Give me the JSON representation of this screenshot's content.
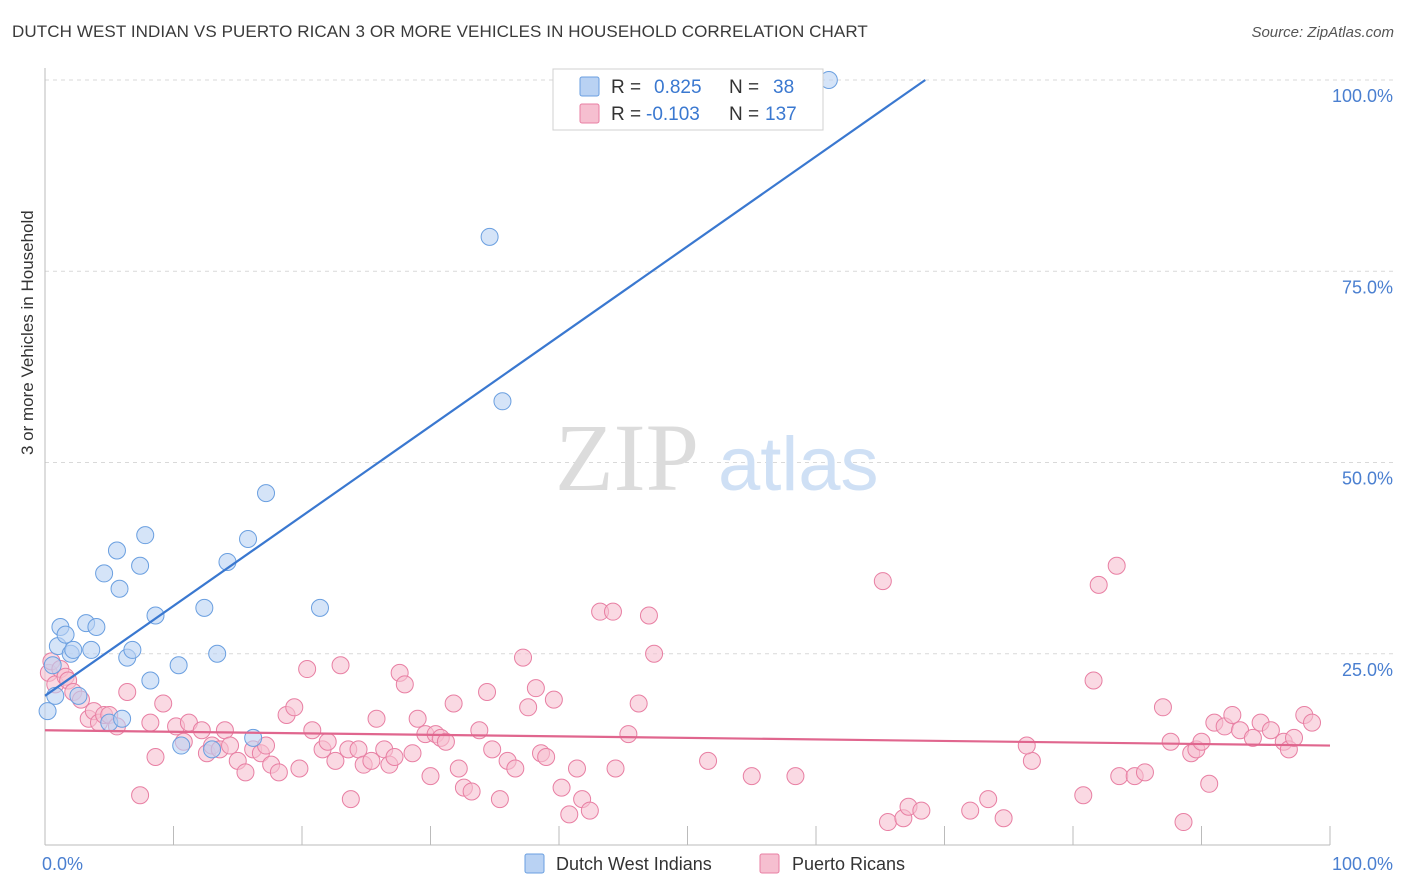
{
  "title": "DUTCH WEST INDIAN VS PUERTO RICAN 3 OR MORE VEHICLES IN HOUSEHOLD CORRELATION CHART",
  "source": "Source: ZipAtlas.com",
  "watermark": {
    "zip": "ZIP",
    "atlas": "atlas"
  },
  "colors": {
    "blue": "#6a9fe0",
    "blue_fill": "#b9d2f3",
    "blue_line": "#3a78d0",
    "pink": "#e87fa3",
    "pink_fill": "#f6bfd0",
    "pink_line": "#e0668e",
    "axis_text": "#4a7fd0",
    "grid": "#d9d9d9"
  },
  "chart_data": {
    "type": "scatter",
    "ylabel": "3 or more Vehicles in Household",
    "xlim": [
      0,
      100
    ],
    "ylim": [
      0,
      100
    ],
    "x_ticks": [
      "0.0%",
      "100.0%"
    ],
    "y_ticks": [
      {
        "value": 25,
        "label": "25.0%"
      },
      {
        "value": 50,
        "label": "50.0%"
      },
      {
        "value": 75,
        "label": "75.0%"
      },
      {
        "value": 100,
        "label": "100.0%"
      }
    ],
    "legend_stats": [
      {
        "r_label": "R =",
        "r_value": "0.825",
        "n_label": "N =",
        "n_value": "38"
      },
      {
        "r_label": "R =",
        "r_value": "-0.103",
        "n_label": "N =",
        "n_value": "137"
      }
    ],
    "series": [
      {
        "name": "Dutch West Indians",
        "color": "#6a9fe0",
        "trend": {
          "x": [
            0,
            68.5
          ],
          "y": [
            19.5,
            100
          ]
        },
        "points": [
          [
            0.2,
            17.5
          ],
          [
            0.6,
            23.5
          ],
          [
            0.8,
            19.5
          ],
          [
            1.0,
            26
          ],
          [
            1.2,
            28.5
          ],
          [
            1.6,
            27.5
          ],
          [
            2.0,
            25
          ],
          [
            2.2,
            25.5
          ],
          [
            2.6,
            19.5
          ],
          [
            3.2,
            29
          ],
          [
            3.6,
            25.5
          ],
          [
            4.0,
            28.5
          ],
          [
            4.6,
            35.5
          ],
          [
            5.0,
            16
          ],
          [
            5.6,
            38.5
          ],
          [
            5.8,
            33.5
          ],
          [
            6.0,
            16.5
          ],
          [
            6.4,
            24.5
          ],
          [
            6.8,
            25.5
          ],
          [
            7.4,
            36.5
          ],
          [
            7.8,
            40.5
          ],
          [
            8.2,
            21.5
          ],
          [
            8.6,
            30
          ],
          [
            10.4,
            23.5
          ],
          [
            10.6,
            13
          ],
          [
            12.4,
            31
          ],
          [
            13.0,
            12.5
          ],
          [
            13.4,
            25
          ],
          [
            14.2,
            37
          ],
          [
            15.8,
            40
          ],
          [
            16.2,
            14
          ],
          [
            17.2,
            46
          ],
          [
            21.4,
            31
          ],
          [
            34.6,
            79.5
          ],
          [
            35.6,
            58
          ],
          [
            61.0,
            100
          ]
        ]
      },
      {
        "name": "Puerto Ricans",
        "color": "#e87fa3",
        "trend": {
          "x": [
            0,
            100
          ],
          "y": [
            15,
            13
          ]
        },
        "points": [
          [
            0.3,
            22.5
          ],
          [
            0.5,
            24
          ],
          [
            0.8,
            21
          ],
          [
            1.2,
            23
          ],
          [
            1.6,
            22
          ],
          [
            1.8,
            21.5
          ],
          [
            2.2,
            20
          ],
          [
            2.8,
            19
          ],
          [
            3.4,
            16.5
          ],
          [
            3.8,
            17.5
          ],
          [
            4.2,
            16
          ],
          [
            4.6,
            17
          ],
          [
            5.0,
            17
          ],
          [
            5.6,
            15.5
          ],
          [
            6.4,
            20
          ],
          [
            7.4,
            6.5
          ],
          [
            8.2,
            16
          ],
          [
            8.6,
            11.5
          ],
          [
            9.2,
            18.5
          ],
          [
            10.2,
            15.5
          ],
          [
            10.8,
            13.5
          ],
          [
            11.2,
            16
          ],
          [
            12.2,
            15
          ],
          [
            12.6,
            12
          ],
          [
            13.0,
            13
          ],
          [
            13.6,
            12.5
          ],
          [
            14.0,
            15
          ],
          [
            14.4,
            13
          ],
          [
            15.0,
            11
          ],
          [
            15.6,
            9.5
          ],
          [
            16.2,
            12.5
          ],
          [
            16.8,
            12
          ],
          [
            17.2,
            13
          ],
          [
            17.6,
            10.5
          ],
          [
            18.2,
            9.5
          ],
          [
            18.8,
            17
          ],
          [
            19.4,
            18
          ],
          [
            19.8,
            10
          ],
          [
            20.4,
            23
          ],
          [
            20.8,
            15
          ],
          [
            21.6,
            12.5
          ],
          [
            22.0,
            13.5
          ],
          [
            22.6,
            11
          ],
          [
            23.0,
            23.5
          ],
          [
            23.6,
            12.5
          ],
          [
            23.8,
            6
          ],
          [
            24.4,
            12.5
          ],
          [
            24.8,
            10.5
          ],
          [
            25.4,
            11
          ],
          [
            25.8,
            16.5
          ],
          [
            26.4,
            12.5
          ],
          [
            26.8,
            10.5
          ],
          [
            27.2,
            11.5
          ],
          [
            27.6,
            22.5
          ],
          [
            28.0,
            21
          ],
          [
            28.6,
            12
          ],
          [
            29.0,
            16.5
          ],
          [
            29.6,
            14.5
          ],
          [
            30.0,
            9
          ],
          [
            30.4,
            14.5
          ],
          [
            30.8,
            14
          ],
          [
            31.2,
            13.5
          ],
          [
            31.8,
            18.5
          ],
          [
            32.2,
            10
          ],
          [
            32.6,
            7.5
          ],
          [
            33.2,
            7
          ],
          [
            33.8,
            15
          ],
          [
            34.4,
            20
          ],
          [
            34.8,
            12.5
          ],
          [
            35.4,
            6
          ],
          [
            36.0,
            11
          ],
          [
            36.6,
            10
          ],
          [
            37.2,
            24.5
          ],
          [
            37.6,
            18
          ],
          [
            38.2,
            20.5
          ],
          [
            38.6,
            12
          ],
          [
            39.0,
            11.5
          ],
          [
            39.6,
            19
          ],
          [
            40.2,
            7.5
          ],
          [
            40.8,
            4
          ],
          [
            41.4,
            10
          ],
          [
            41.8,
            6
          ],
          [
            42.4,
            4.5
          ],
          [
            43.2,
            30.5
          ],
          [
            44.2,
            30.5
          ],
          [
            44.4,
            10
          ],
          [
            45.4,
            14.5
          ],
          [
            46.2,
            18.5
          ],
          [
            47.0,
            30
          ],
          [
            47.4,
            25
          ],
          [
            51.6,
            11
          ],
          [
            55.0,
            9
          ],
          [
            58.4,
            9
          ],
          [
            65.2,
            34.5
          ],
          [
            65.6,
            3
          ],
          [
            66.8,
            3.5
          ],
          [
            67.2,
            5
          ],
          [
            68.2,
            4.5
          ],
          [
            72.0,
            4.5
          ],
          [
            73.4,
            6
          ],
          [
            74.6,
            3.5
          ],
          [
            76.8,
            11
          ],
          [
            76.4,
            13
          ],
          [
            80.8,
            6.5
          ],
          [
            81.6,
            21.5
          ],
          [
            82.0,
            34
          ],
          [
            83.4,
            36.5
          ],
          [
            83.6,
            9
          ],
          [
            84.8,
            9
          ],
          [
            85.6,
            9.5
          ],
          [
            87.0,
            18
          ],
          [
            87.6,
            13.5
          ],
          [
            88.6,
            3
          ],
          [
            89.2,
            12
          ],
          [
            89.6,
            12.5
          ],
          [
            90.0,
            13.5
          ],
          [
            90.6,
            8
          ],
          [
            91.0,
            16
          ],
          [
            91.8,
            15.5
          ],
          [
            92.4,
            17
          ],
          [
            93.0,
            15
          ],
          [
            94.0,
            14
          ],
          [
            94.6,
            16
          ],
          [
            95.4,
            15
          ],
          [
            96.4,
            13.5
          ],
          [
            96.8,
            12.5
          ],
          [
            97.2,
            14
          ],
          [
            98.0,
            17
          ],
          [
            98.6,
            16
          ]
        ]
      }
    ]
  }
}
